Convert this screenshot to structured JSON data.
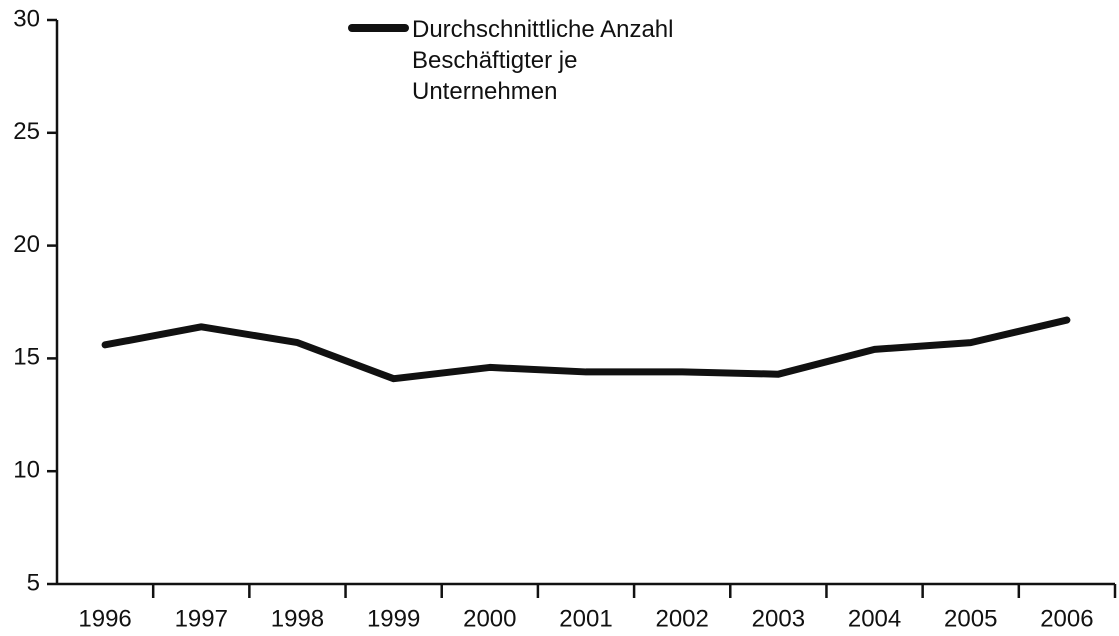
{
  "chart_data": {
    "type": "line",
    "categories": [
      "1996",
      "1997",
      "1998",
      "1999",
      "2000",
      "2001",
      "2002",
      "2003",
      "2004",
      "2005",
      "2006"
    ],
    "series": [
      {
        "name": "Durchschnittliche Anzahl Beschäftigter je Unternehmen",
        "color": "#111111",
        "values": [
          15.6,
          16.4,
          15.7,
          14.1,
          14.6,
          14.4,
          14.4,
          14.3,
          15.4,
          15.7,
          16.7
        ]
      }
    ],
    "ylim": [
      5,
      30
    ],
    "yticks": [
      5,
      10,
      15,
      20,
      25,
      30
    ],
    "grid": false,
    "legend": "top"
  }
}
